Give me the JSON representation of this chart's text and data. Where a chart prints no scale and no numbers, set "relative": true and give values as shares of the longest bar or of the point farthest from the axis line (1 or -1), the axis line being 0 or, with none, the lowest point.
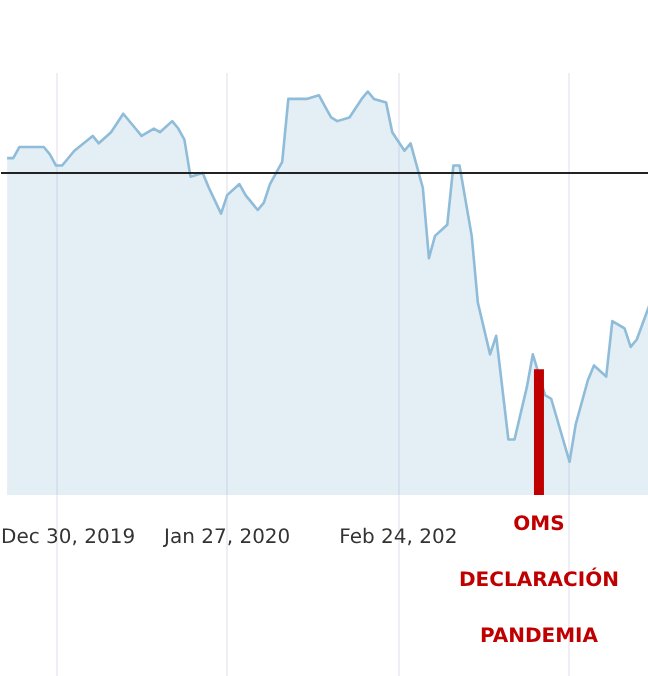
{
  "chart_data": {
    "type": "area",
    "relative": true,
    "x": [
      "2019-12-22",
      "2019-12-23",
      "2019-12-24",
      "2019-12-26",
      "2019-12-28",
      "2019-12-29",
      "2019-12-30",
      "2019-12-31",
      "2020-01-02",
      "2020-01-05",
      "2020-01-06",
      "2020-01-08",
      "2020-01-10",
      "2020-01-12",
      "2020-01-13",
      "2020-01-15",
      "2020-01-16",
      "2020-01-18",
      "2020-01-19",
      "2020-01-20",
      "2020-01-21",
      "2020-01-23",
      "2020-01-24",
      "2020-01-26",
      "2020-01-27",
      "2020-01-29",
      "2020-01-30",
      "2020-02-01",
      "2020-02-02",
      "2020-02-03",
      "2020-02-05",
      "2020-02-06",
      "2020-02-09",
      "2020-02-11",
      "2020-02-12",
      "2020-02-13",
      "2020-02-14",
      "2020-02-16",
      "2020-02-18",
      "2020-02-19",
      "2020-02-20",
      "2020-02-22",
      "2020-02-23",
      "2020-02-25",
      "2020-02-26",
      "2020-02-28",
      "2020-02-29",
      "2020-03-01",
      "2020-03-03",
      "2020-03-04",
      "2020-03-05",
      "2020-03-07",
      "2020-03-08",
      "2020-03-09",
      "2020-03-10",
      "2020-03-11",
      "2020-03-13",
      "2020-03-14",
      "2020-03-16",
      "2020-03-17",
      "2020-03-19",
      "2020-03-20",
      "2020-03-23",
      "2020-03-24",
      "2020-03-26",
      "2020-03-27",
      "2020-03-29",
      "2020-03-30",
      "2020-04-01",
      "2020-04-02",
      "2020-04-03",
      "2020-04-05"
    ],
    "series": [
      {
        "color": "#8fbcd8",
        "values": [
          0.82,
          0.82,
          0.85,
          0.85,
          0.85,
          0.83,
          0.8,
          0.8,
          0.84,
          0.88,
          0.86,
          0.89,
          0.94,
          0.9,
          0.88,
          0.9,
          0.89,
          0.92,
          0.9,
          0.87,
          0.77,
          0.78,
          0.74,
          0.67,
          0.72,
          0.75,
          0.72,
          0.68,
          0.7,
          0.75,
          0.81,
          0.98,
          0.98,
          0.99,
          0.96,
          0.93,
          0.92,
          0.93,
          0.98,
          1.0,
          0.98,
          0.97,
          0.89,
          0.84,
          0.86,
          0.74,
          0.55,
          0.61,
          0.64,
          0.8,
          0.8,
          0.61,
          0.43,
          0.36,
          0.29,
          0.34,
          0.06,
          0.06,
          0.2,
          0.29,
          0.18,
          0.17,
          0.0,
          0.1,
          0.22,
          0.26,
          0.23,
          0.38,
          0.36,
          0.31,
          0.33,
          0.42
        ]
      }
    ],
    "xlim": [
      "2019-12-21",
      "2020-04-05"
    ],
    "xticks": [
      {
        "value": "2019-12-30",
        "label": "Dec 30, 2019"
      },
      {
        "value": "2020-01-27",
        "label": "Jan 27, 2020"
      },
      {
        "value": "2020-02-24",
        "label": "Feb 24, 202"
      },
      {
        "value": "2020-03-23",
        "label": null
      }
    ],
    "grid": "x",
    "ref_lines": [
      {
        "axis": "y",
        "value": 0.78,
        "color": "#222222"
      },
      {
        "axis": "x",
        "value": "2020-03-18",
        "label": "OMS DECLARACIÓN PANDEMIA",
        "color": "#c00000"
      }
    ]
  }
}
